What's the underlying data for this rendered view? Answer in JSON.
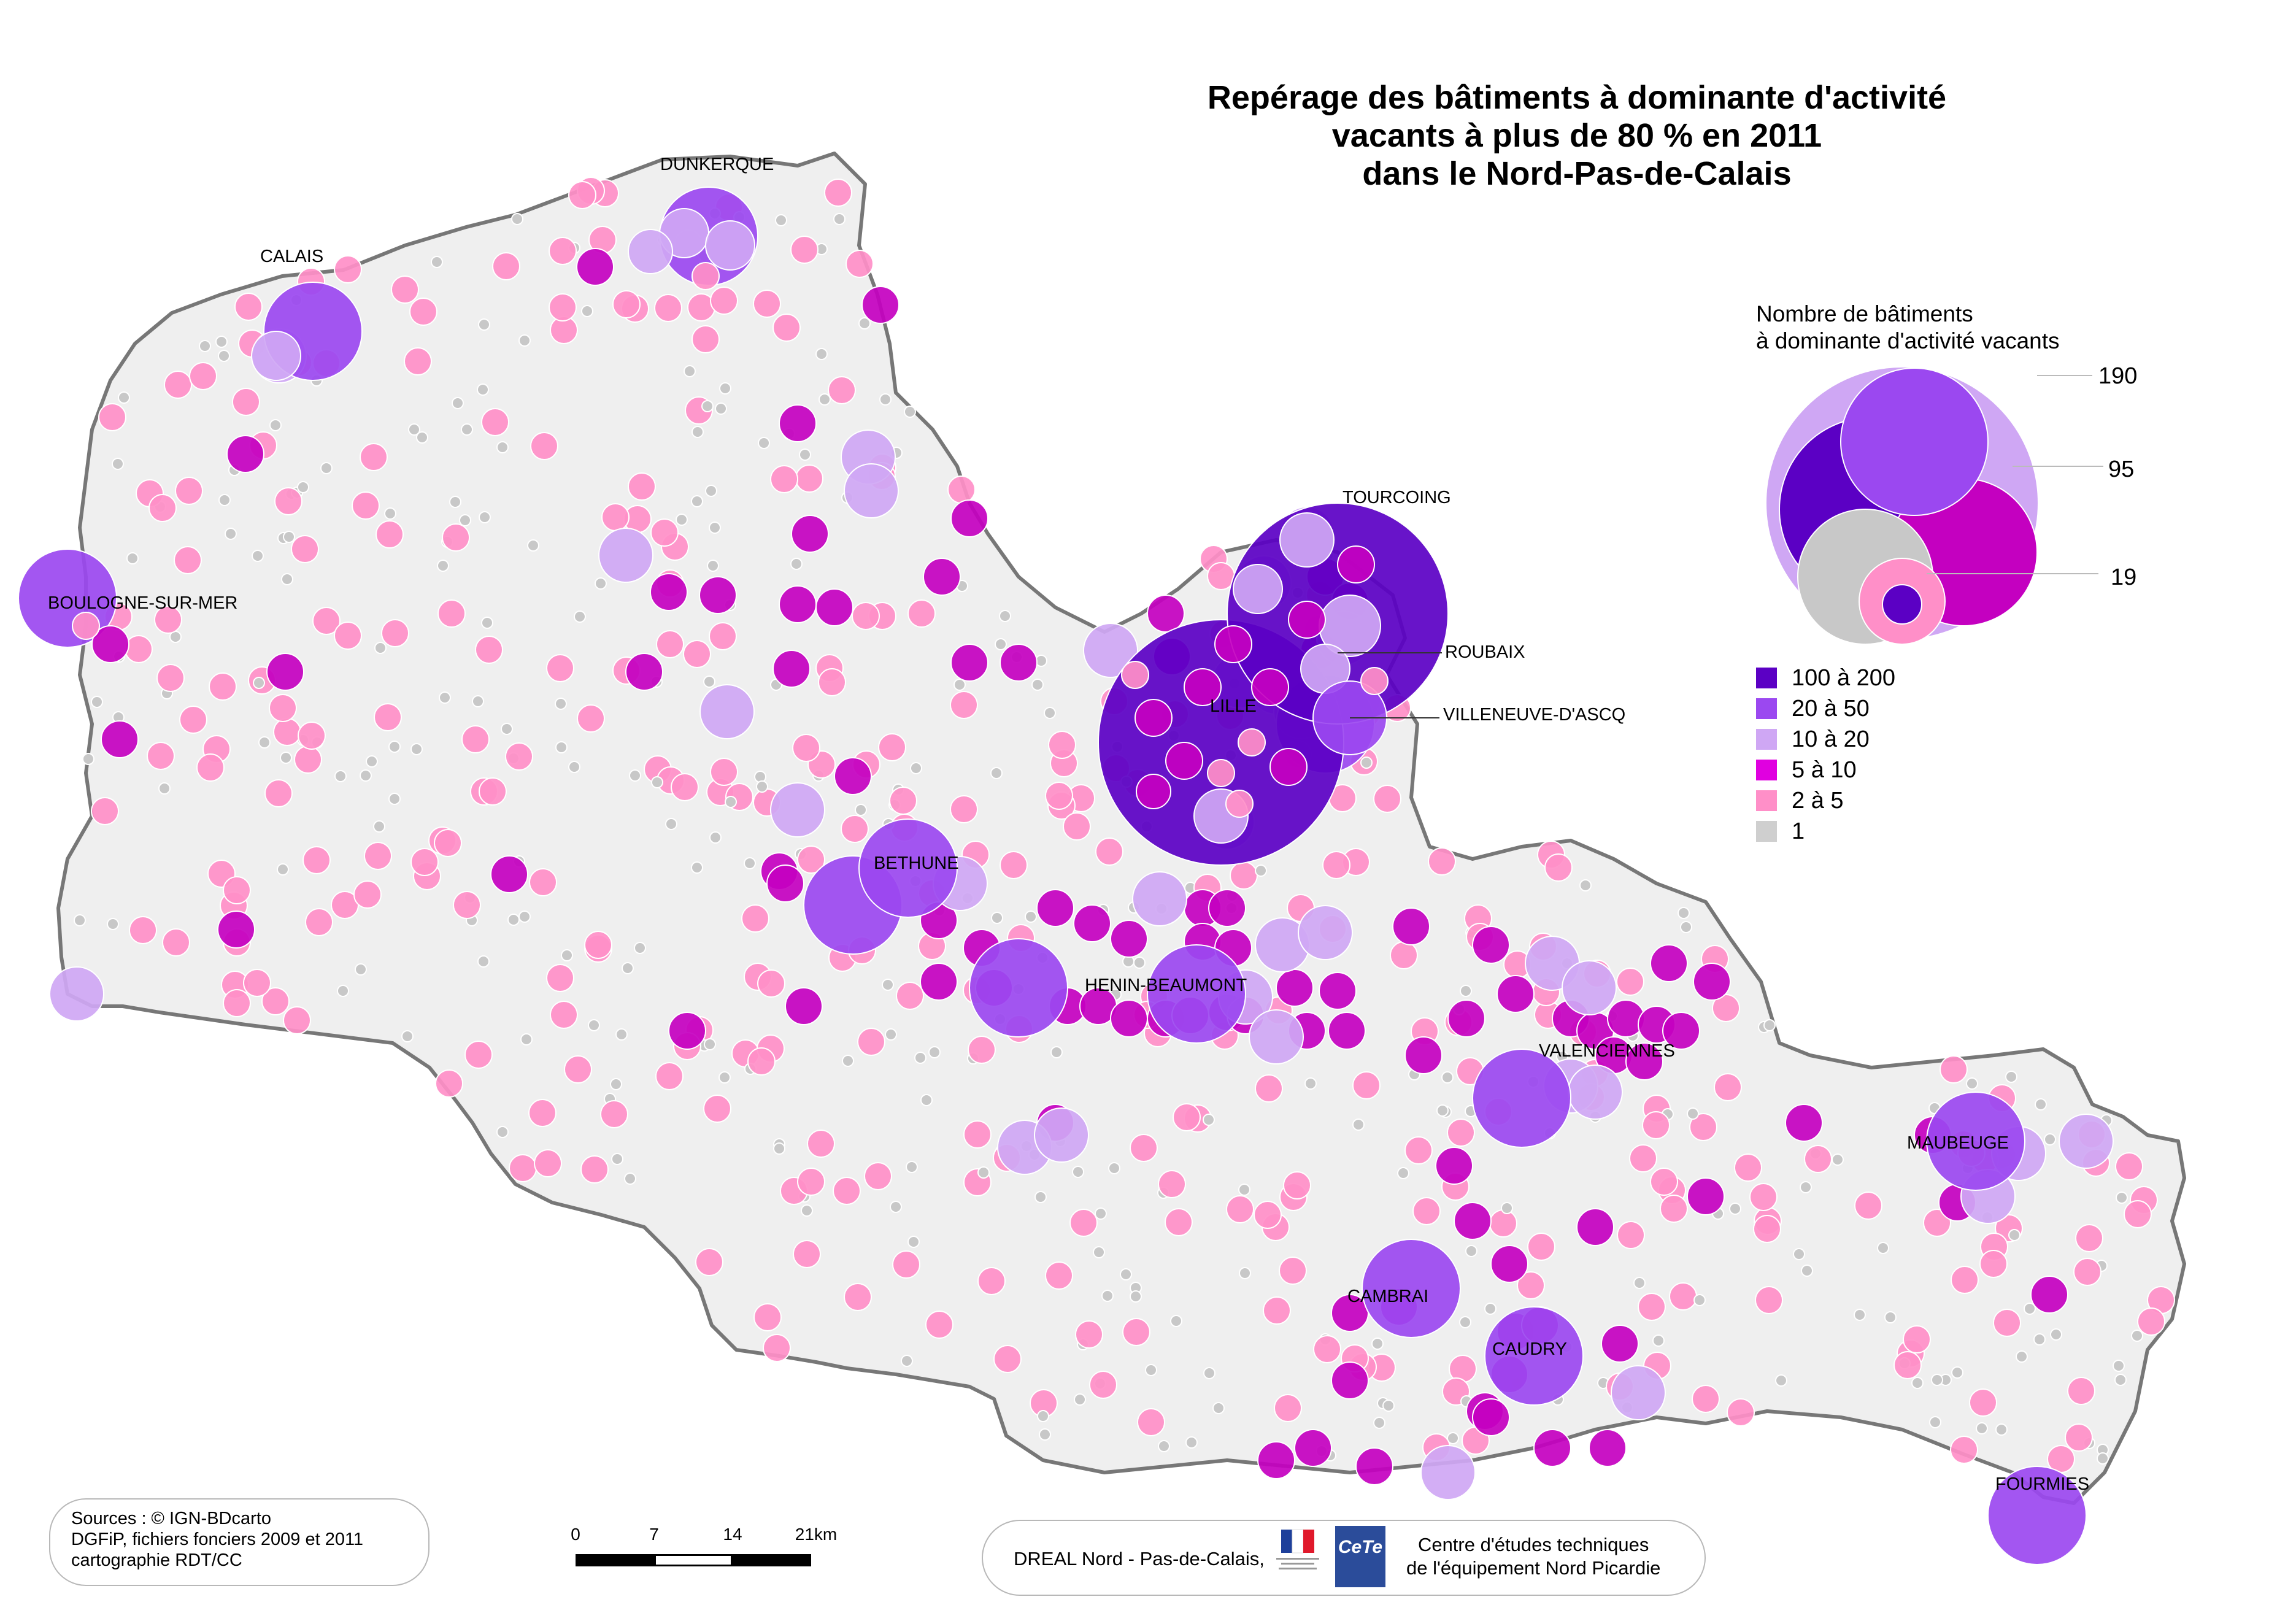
{
  "title": {
    "line1": "Repérage des bâtiments à dominante d'activité",
    "line2": "vacants à plus de 80 % en 2011",
    "line3": "dans le Nord-Pas-de-Calais"
  },
  "cities": {
    "dunkerque": "DUNKERQUE",
    "calais": "CALAIS",
    "boulogne": "BOULOGNE-SUR-MER",
    "tourcoing": "TOURCOING",
    "roubaix": "ROUBAIX",
    "lille": "LILLE",
    "villeneuve": "VILLENEUVE-D'ASCQ",
    "bethune": "BETHUNE",
    "henin": "HENIN-BEAUMONT",
    "valenciennes": "VALENCIENNES",
    "maubeuge": "MAUBEUGE",
    "cambrai": "CAMBRAI",
    "caudry": "CAUDRY",
    "fourmies": "FOURMIES"
  },
  "legend": {
    "title_line1": "Nombre de bâtiments",
    "title_line2": "à dominante d'activité vacants",
    "sizes": [
      "190",
      "95",
      "19"
    ],
    "classes": [
      {
        "label": "100 à 200",
        "color": "#5b00c4"
      },
      {
        "label": "20 à 50",
        "color": "#9b48f0"
      },
      {
        "label": "10 à 20",
        "color": "#cfa7f4"
      },
      {
        "label": "5 à 10",
        "color": "#e000e0"
      },
      {
        "label": "2 à 5",
        "color": "#ff8fc8"
      },
      {
        "label": "1",
        "color": "#cfcfcf"
      }
    ]
  },
  "colors": {
    "c100": "#5b00c4",
    "c20": "#9b48f0",
    "c10": "#cfa7f4",
    "c5": "#c400c0",
    "c2": "#ff8fc8",
    "c1": "#c8c8c8",
    "land": "#efefef",
    "border": "#777777"
  },
  "sources": {
    "line1": "Sources : ©  IGN-BDcarto",
    "line2": "DGFiP, fichiers fonciers 2009 et 2011",
    "line3": "cartographie RDT/CC"
  },
  "scale": {
    "ticks": [
      "0",
      "7",
      "14",
      "21km"
    ]
  },
  "credits": {
    "dreal": "DREAL Nord - Pas-de-Calais,",
    "cete_logo": "CeTe",
    "cete_line1": "Centre d'études techniques",
    "cete_line2": "de l'équipement Nord Picardie"
  }
}
